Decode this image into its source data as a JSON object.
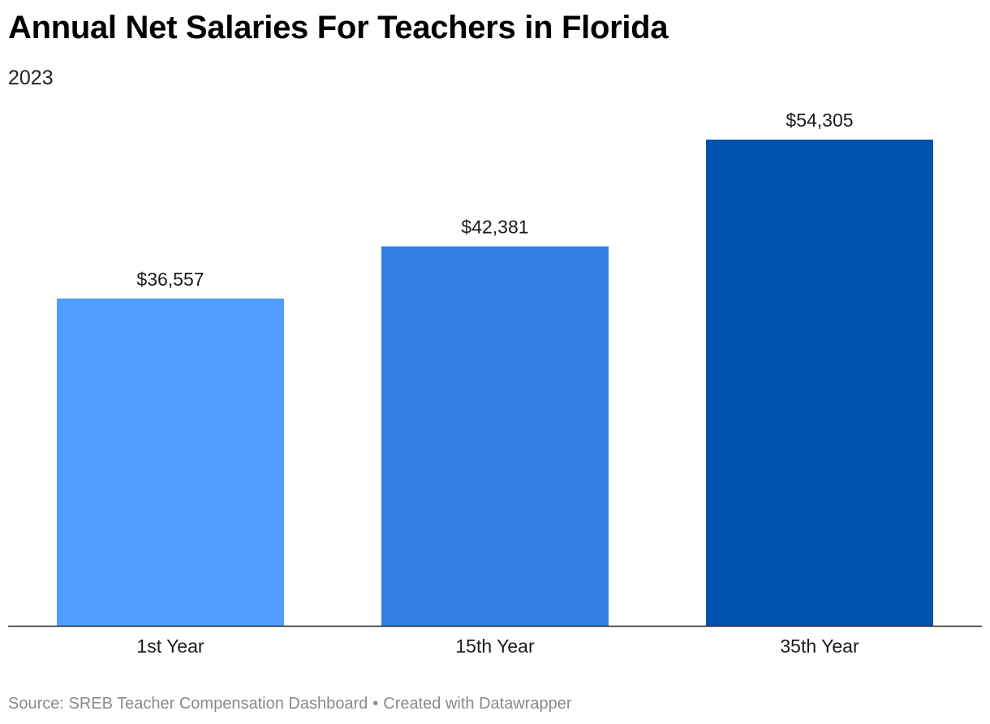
{
  "header": {
    "title": "Annual Net Salaries For Teachers in Florida",
    "subtitle": "2023"
  },
  "footer": {
    "source_prefix": "Source:",
    "source": "SREB Teacher Compensation Dashboard",
    "separator": "•",
    "credit": "Created with Datawrapper"
  },
  "chart_data": {
    "type": "bar",
    "title": "Annual Net Salaries For Teachers in Florida",
    "subtitle": "2023",
    "categories": [
      "1st Year",
      "15th Year",
      "35th Year"
    ],
    "values": [
      36557,
      42381,
      54305
    ],
    "value_labels": [
      "$36,557",
      "$42,381",
      "$54,305"
    ],
    "colors": [
      "#519cff",
      "#3181e4",
      "#0053ae"
    ],
    "xlabel": "",
    "ylabel": "",
    "ylim": [
      0,
      60000
    ],
    "grid": false,
    "legend": "none"
  }
}
